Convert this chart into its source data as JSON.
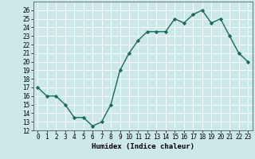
{
  "x": [
    0,
    1,
    2,
    3,
    4,
    5,
    6,
    7,
    8,
    9,
    10,
    11,
    12,
    13,
    14,
    15,
    16,
    17,
    18,
    19,
    20,
    21,
    22,
    23
  ],
  "y": [
    17,
    16,
    16,
    15,
    13.5,
    13.5,
    12.5,
    13,
    15,
    19,
    21,
    22.5,
    23.5,
    23.5,
    23.5,
    25,
    24.5,
    25.5,
    26,
    24.5,
    25,
    23,
    21,
    20
  ],
  "line_color": "#1a6b5a",
  "marker": "D",
  "markersize": 2.2,
  "bg_color": "#cce8e8",
  "grid_color": "#ffffff",
  "xlabel": "Humidex (Indice chaleur)",
  "xlim": [
    -0.5,
    23.5
  ],
  "ylim": [
    12,
    27
  ],
  "yticks": [
    12,
    13,
    14,
    15,
    16,
    17,
    18,
    19,
    20,
    21,
    22,
    23,
    24,
    25,
    26
  ],
  "xticks": [
    0,
    1,
    2,
    3,
    4,
    5,
    6,
    7,
    8,
    9,
    10,
    11,
    12,
    13,
    14,
    15,
    16,
    17,
    18,
    19,
    20,
    21,
    22,
    23
  ],
  "tick_fontsize": 5.5,
  "xlabel_fontsize": 6.5,
  "linewidth": 1.0
}
